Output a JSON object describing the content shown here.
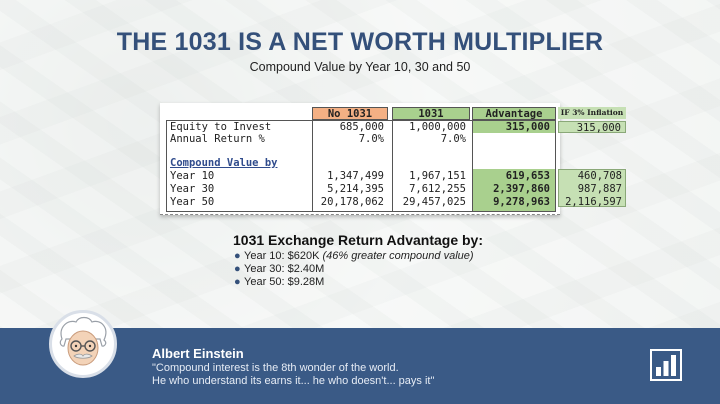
{
  "header": {
    "title": "THE 1031 IS A NET WORTH MULTIPLIER",
    "subtitle": "Compound Value by Year 10, 30 and 50"
  },
  "table": {
    "columns": [
      "No 1031",
      "1031",
      "Advantage"
    ],
    "rows": [
      {
        "label": "Equity to Invest",
        "no1031": "685,000",
        "with1031": "1,000,000",
        "advantage": "315,000"
      },
      {
        "label": "Annual Return %",
        "no1031": "7.0%",
        "with1031": "7.0%",
        "advantage": ""
      },
      {
        "label": "Compound Value by",
        "no1031": "",
        "with1031": "",
        "advantage": ""
      },
      {
        "label": "Year 10",
        "no1031": "1,347,499",
        "with1031": "1,967,151",
        "advantage": "619,653"
      },
      {
        "label": "Year 30",
        "no1031": "5,214,395",
        "with1031": "7,612,255",
        "advantage": "2,397,860"
      },
      {
        "label": "Year 50",
        "no1031": "20,178,062",
        "with1031": "29,457,025",
        "advantage": "9,278,963"
      }
    ],
    "inflation": {
      "header": "IF 3% Inflation",
      "equity": "315,000",
      "year10": "460,708",
      "year30": "987,887",
      "year50": "2,116,597"
    }
  },
  "advantage_summary": {
    "title": "1031 Exchange Return Advantage by:",
    "items": [
      {
        "text": "Year 10: $620K",
        "note": "(46% greater compound value)"
      },
      {
        "text": "Year 30: $2.40M",
        "note": ""
      },
      {
        "text": "Year 50: $9.28M",
        "note": ""
      }
    ]
  },
  "footer": {
    "name": "Albert Einstein",
    "quote_line1": "\"Compound interest is the 8th wonder of the world.",
    "quote_line2": "He who understand its earns it... he who doesn't... pays it\""
  },
  "colors": {
    "title": "#34507a",
    "footer_bg": "#3a5a86",
    "no1031_header": "#f4b084",
    "green_header": "#a9d08e",
    "green_light": "#c6e0b4"
  },
  "icons": {
    "avatar": "einstein-avatar-icon",
    "chart": "bar-chart-icon"
  }
}
